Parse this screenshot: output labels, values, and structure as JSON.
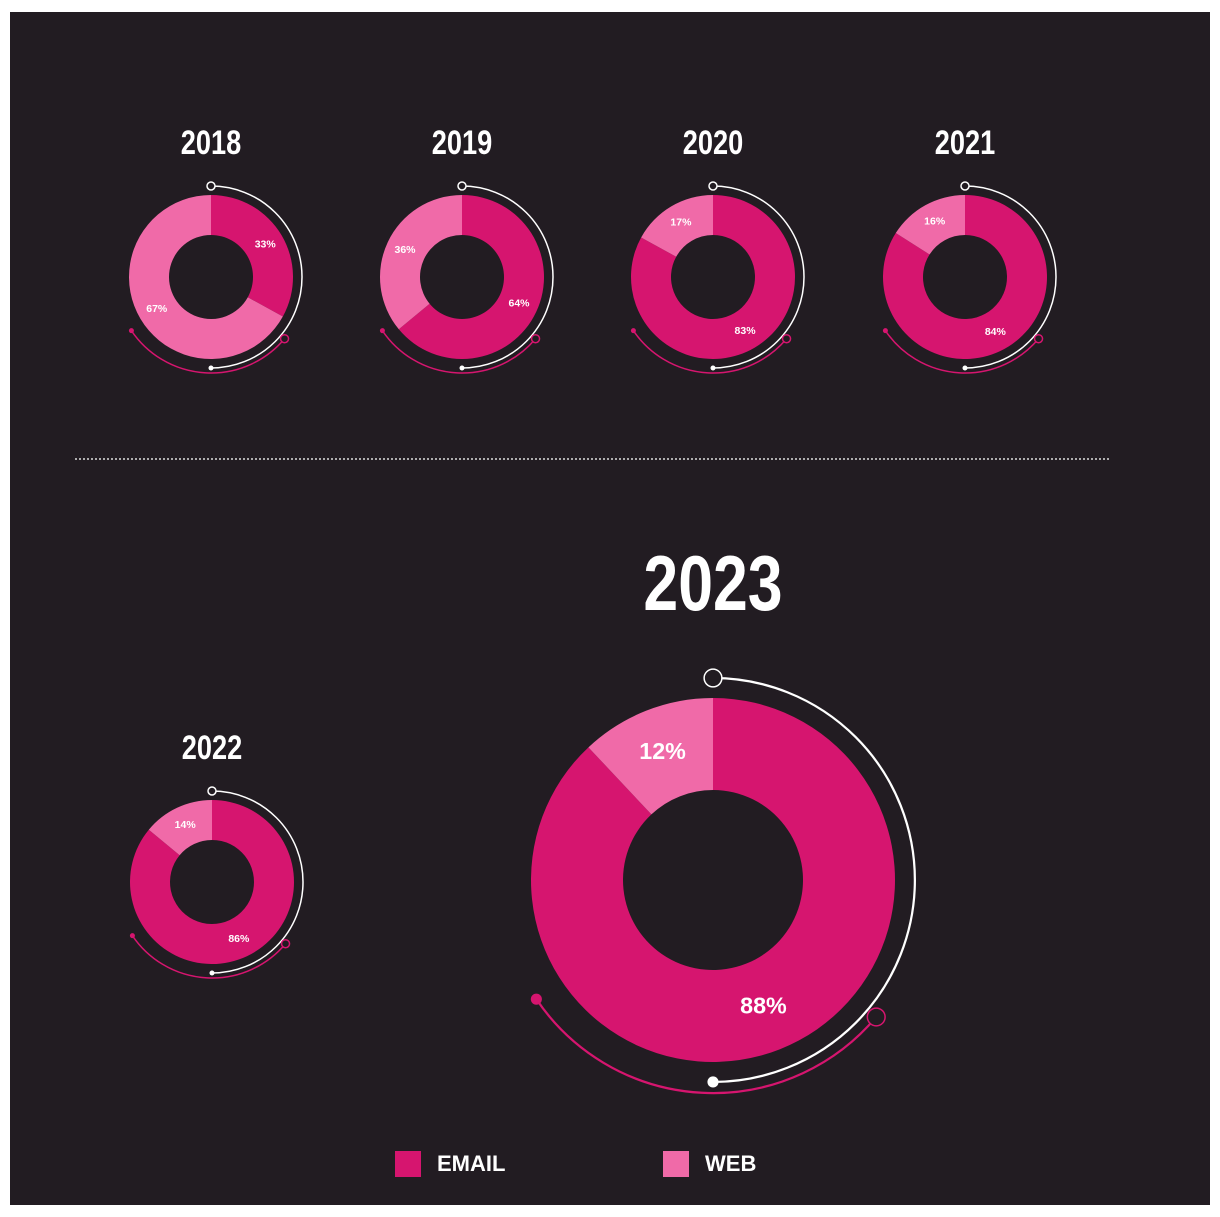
{
  "chart_data": [
    {
      "type": "pie",
      "title": "2018",
      "categories": [
        "EMAIL",
        "WEB"
      ],
      "values": [
        33,
        67
      ],
      "value_labels": [
        "33%",
        "67%"
      ],
      "colors": [
        "#d6156f",
        "#f06aa8"
      ]
    },
    {
      "type": "pie",
      "title": "2019",
      "categories": [
        "EMAIL",
        "WEB"
      ],
      "values": [
        64,
        36
      ],
      "value_labels": [
        "64%",
        "36%"
      ],
      "colors": [
        "#d6156f",
        "#f06aa8"
      ]
    },
    {
      "type": "pie",
      "title": "2020",
      "categories": [
        "EMAIL",
        "WEB"
      ],
      "values": [
        83,
        17
      ],
      "value_labels": [
        "83%",
        "17%"
      ],
      "colors": [
        "#d6156f",
        "#f06aa8"
      ]
    },
    {
      "type": "pie",
      "title": "2021",
      "categories": [
        "EMAIL",
        "WEB"
      ],
      "values": [
        84,
        16
      ],
      "value_labels": [
        "84%",
        "16%"
      ],
      "colors": [
        "#d6156f",
        "#f06aa8"
      ]
    },
    {
      "type": "pie",
      "title": "2022",
      "categories": [
        "EMAIL",
        "WEB"
      ],
      "values": [
        86,
        14
      ],
      "value_labels": [
        "86%",
        "14%"
      ],
      "colors": [
        "#d6156f",
        "#f06aa8"
      ]
    },
    {
      "type": "pie",
      "title": "2023",
      "categories": [
        "EMAIL",
        "WEB"
      ],
      "values": [
        88,
        12
      ],
      "value_labels": [
        "88%",
        "12%"
      ],
      "colors": [
        "#d6156f",
        "#f06aa8"
      ]
    }
  ]
}
